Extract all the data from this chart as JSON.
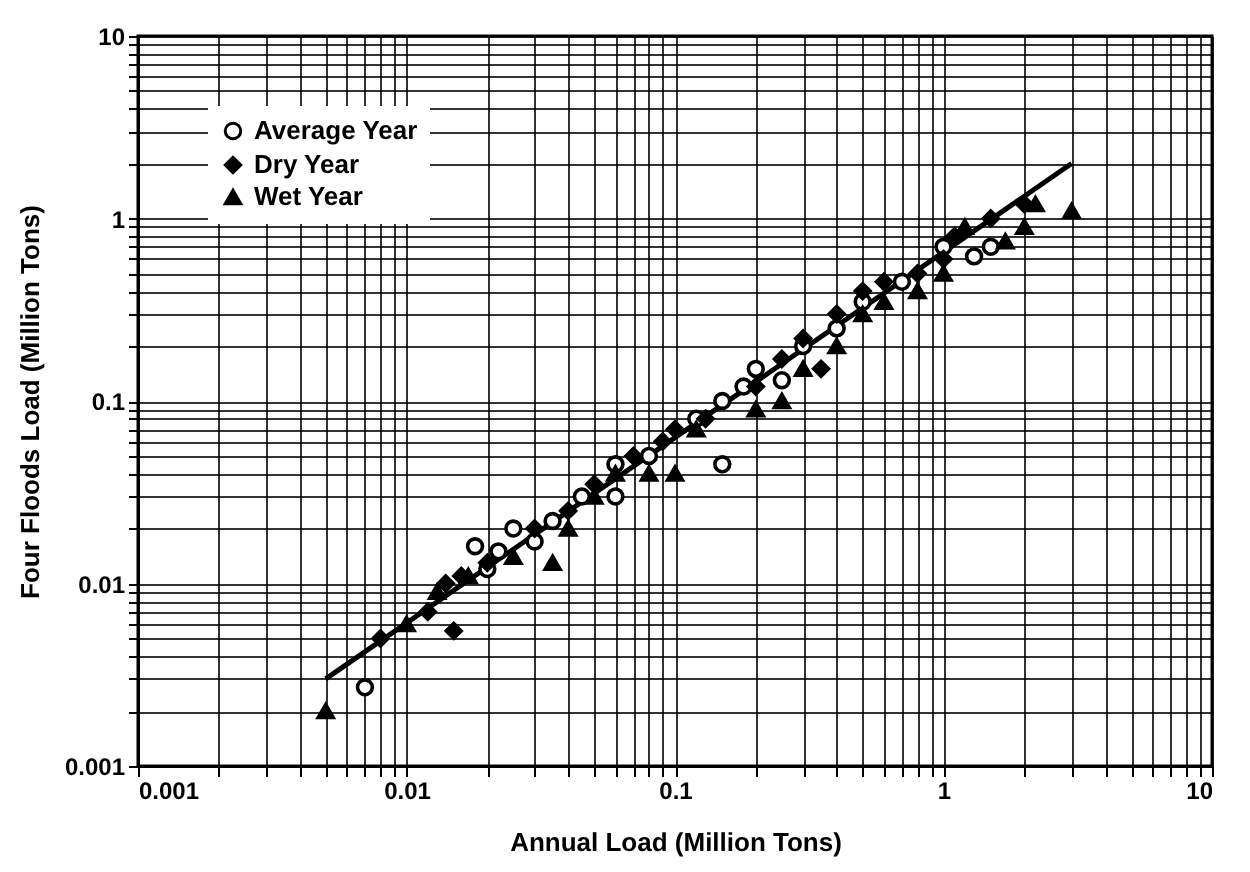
{
  "chart_data": {
    "type": "scatter",
    "xlabel": "Annual Load (Million Tons)",
    "ylabel": "Four Floods Load (Million Tons)",
    "log": "xy",
    "grid": true,
    "legend": "top left",
    "xlim": [
      0.001,
      10
    ],
    "ylim": [
      0.001,
      10
    ],
    "xticks": [
      0.001,
      {
        "value": 0.002,
        "label": null
      },
      {
        "value": 0.003,
        "label": null
      },
      {
        "value": 0.004,
        "label": null
      },
      {
        "value": 0.005,
        "label": null
      },
      {
        "value": 0.006,
        "label": null
      },
      {
        "value": 0.007,
        "label": null
      },
      {
        "value": 0.008,
        "label": null
      },
      {
        "value": 0.009,
        "label": null
      },
      0.01,
      {
        "value": 0.02,
        "label": null
      },
      {
        "value": 0.03,
        "label": null
      },
      {
        "value": 0.04,
        "label": null
      },
      {
        "value": 0.05,
        "label": null
      },
      {
        "value": 0.06,
        "label": null
      },
      {
        "value": 0.07,
        "label": null
      },
      {
        "value": 0.08,
        "label": null
      },
      {
        "value": 0.09,
        "label": null
      },
      0.1,
      {
        "value": 0.2,
        "label": null
      },
      {
        "value": 0.3,
        "label": null
      },
      {
        "value": 0.4,
        "label": null
      },
      {
        "value": 0.5,
        "label": null
      },
      {
        "value": 0.6,
        "label": null
      },
      {
        "value": 0.7,
        "label": null
      },
      {
        "value": 0.8,
        "label": null
      },
      {
        "value": 0.9,
        "label": null
      },
      1,
      {
        "value": 2,
        "label": null
      },
      {
        "value": 3,
        "label": null
      },
      {
        "value": 4,
        "label": null
      },
      {
        "value": 5,
        "label": null
      },
      {
        "value": 6,
        "label": null
      },
      {
        "value": 7,
        "label": null
      },
      {
        "value": 8,
        "label": null
      },
      {
        "value": 9,
        "label": null
      },
      10
    ],
    "yticks": [
      0.001,
      {
        "value": 0.002,
        "label": null
      },
      {
        "value": 0.003,
        "label": null
      },
      {
        "value": 0.004,
        "label": null
      },
      {
        "value": 0.005,
        "label": null
      },
      {
        "value": 0.006,
        "label": null
      },
      {
        "value": 0.007,
        "label": null
      },
      {
        "value": 0.008,
        "label": null
      },
      {
        "value": 0.009,
        "label": null
      },
      0.01,
      {
        "value": 0.02,
        "label": null
      },
      {
        "value": 0.03,
        "label": null
      },
      {
        "value": 0.04,
        "label": null
      },
      {
        "value": 0.05,
        "label": null
      },
      {
        "value": 0.06,
        "label": null
      },
      {
        "value": 0.07,
        "label": null
      },
      {
        "value": 0.08,
        "label": null
      },
      {
        "value": 0.09,
        "label": null
      },
      0.1,
      {
        "value": 0.2,
        "label": null
      },
      {
        "value": 0.3,
        "label": null
      },
      {
        "value": 0.4,
        "label": null
      },
      {
        "value": 0.5,
        "label": null
      },
      {
        "value": 0.6,
        "label": null
      },
      {
        "value": 0.7,
        "label": null
      },
      {
        "value": 0.8,
        "label": null
      },
      {
        "value": 0.9,
        "label": null
      },
      1,
      {
        "value": 2,
        "label": null
      },
      {
        "value": 3,
        "label": null
      },
      {
        "value": 4,
        "label": null
      },
      {
        "value": 5,
        "label": null
      },
      {
        "value": 6,
        "label": null
      },
      {
        "value": 7,
        "label": null
      },
      {
        "value": 8,
        "label": null
      },
      {
        "value": 9,
        "label": null
      },
      10
    ],
    "series": [
      {
        "name": "Average Year",
        "color": "#000000",
        "marker": "circle",
        "x": [
          0.007,
          0.018,
          0.02,
          0.022,
          0.025,
          0.03,
          0.035,
          0.045,
          0.06,
          0.08,
          0.15,
          0.15,
          0.18,
          0.2,
          0.25,
          0.3,
          0.4,
          0.5,
          0.7,
          1,
          1.3,
          1.5,
          0.12,
          0.06
        ],
        "values": [
          0.0027,
          0.016,
          0.012,
          0.015,
          0.02,
          0.017,
          0.022,
          0.03,
          0.045,
          0.05,
          0.045,
          0.1,
          0.12,
          0.15,
          0.13,
          0.2,
          0.25,
          0.35,
          0.45,
          0.7,
          0.62,
          0.7,
          0.08,
          0.03
        ]
      },
      {
        "name": "Dry Year",
        "color": "#000000",
        "marker": "diamond",
        "x": [
          0.008,
          0.012,
          0.014,
          0.015,
          0.016,
          0.02,
          0.03,
          0.04,
          0.05,
          0.07,
          0.09,
          0.1,
          0.13,
          0.2,
          0.25,
          0.3,
          0.35,
          0.4,
          0.5,
          0.6,
          0.8,
          1,
          1.1,
          1.5,
          2
        ],
        "values": [
          0.005,
          0.007,
          0.01,
          0.0055,
          0.011,
          0.013,
          0.02,
          0.025,
          0.035,
          0.05,
          0.06,
          0.07,
          0.08,
          0.12,
          0.17,
          0.22,
          0.15,
          0.3,
          0.4,
          0.45,
          0.5,
          0.6,
          0.8,
          1,
          1.2
        ]
      },
      {
        "name": "Wet Year",
        "color": "#000000",
        "marker": "triangle",
        "x": [
          0.005,
          0.01,
          0.013,
          0.017,
          0.025,
          0.035,
          0.04,
          0.05,
          0.06,
          0.08,
          0.1,
          0.12,
          0.2,
          0.25,
          0.3,
          0.4,
          0.5,
          0.6,
          0.8,
          1,
          1.2,
          1.7,
          2,
          2.2,
          3
        ],
        "values": [
          0.002,
          0.006,
          0.009,
          0.011,
          0.014,
          0.013,
          0.02,
          0.03,
          0.04,
          0.04,
          0.04,
          0.07,
          0.09,
          0.1,
          0.15,
          0.2,
          0.3,
          0.35,
          0.4,
          0.5,
          0.9,
          0.75,
          0.9,
          1.2,
          1.1
        ]
      },
      {
        "type": "line",
        "color": "#000000",
        "x": [
          0.005,
          3
        ],
        "values": [
          0.003,
          2
        ]
      }
    ]
  }
}
